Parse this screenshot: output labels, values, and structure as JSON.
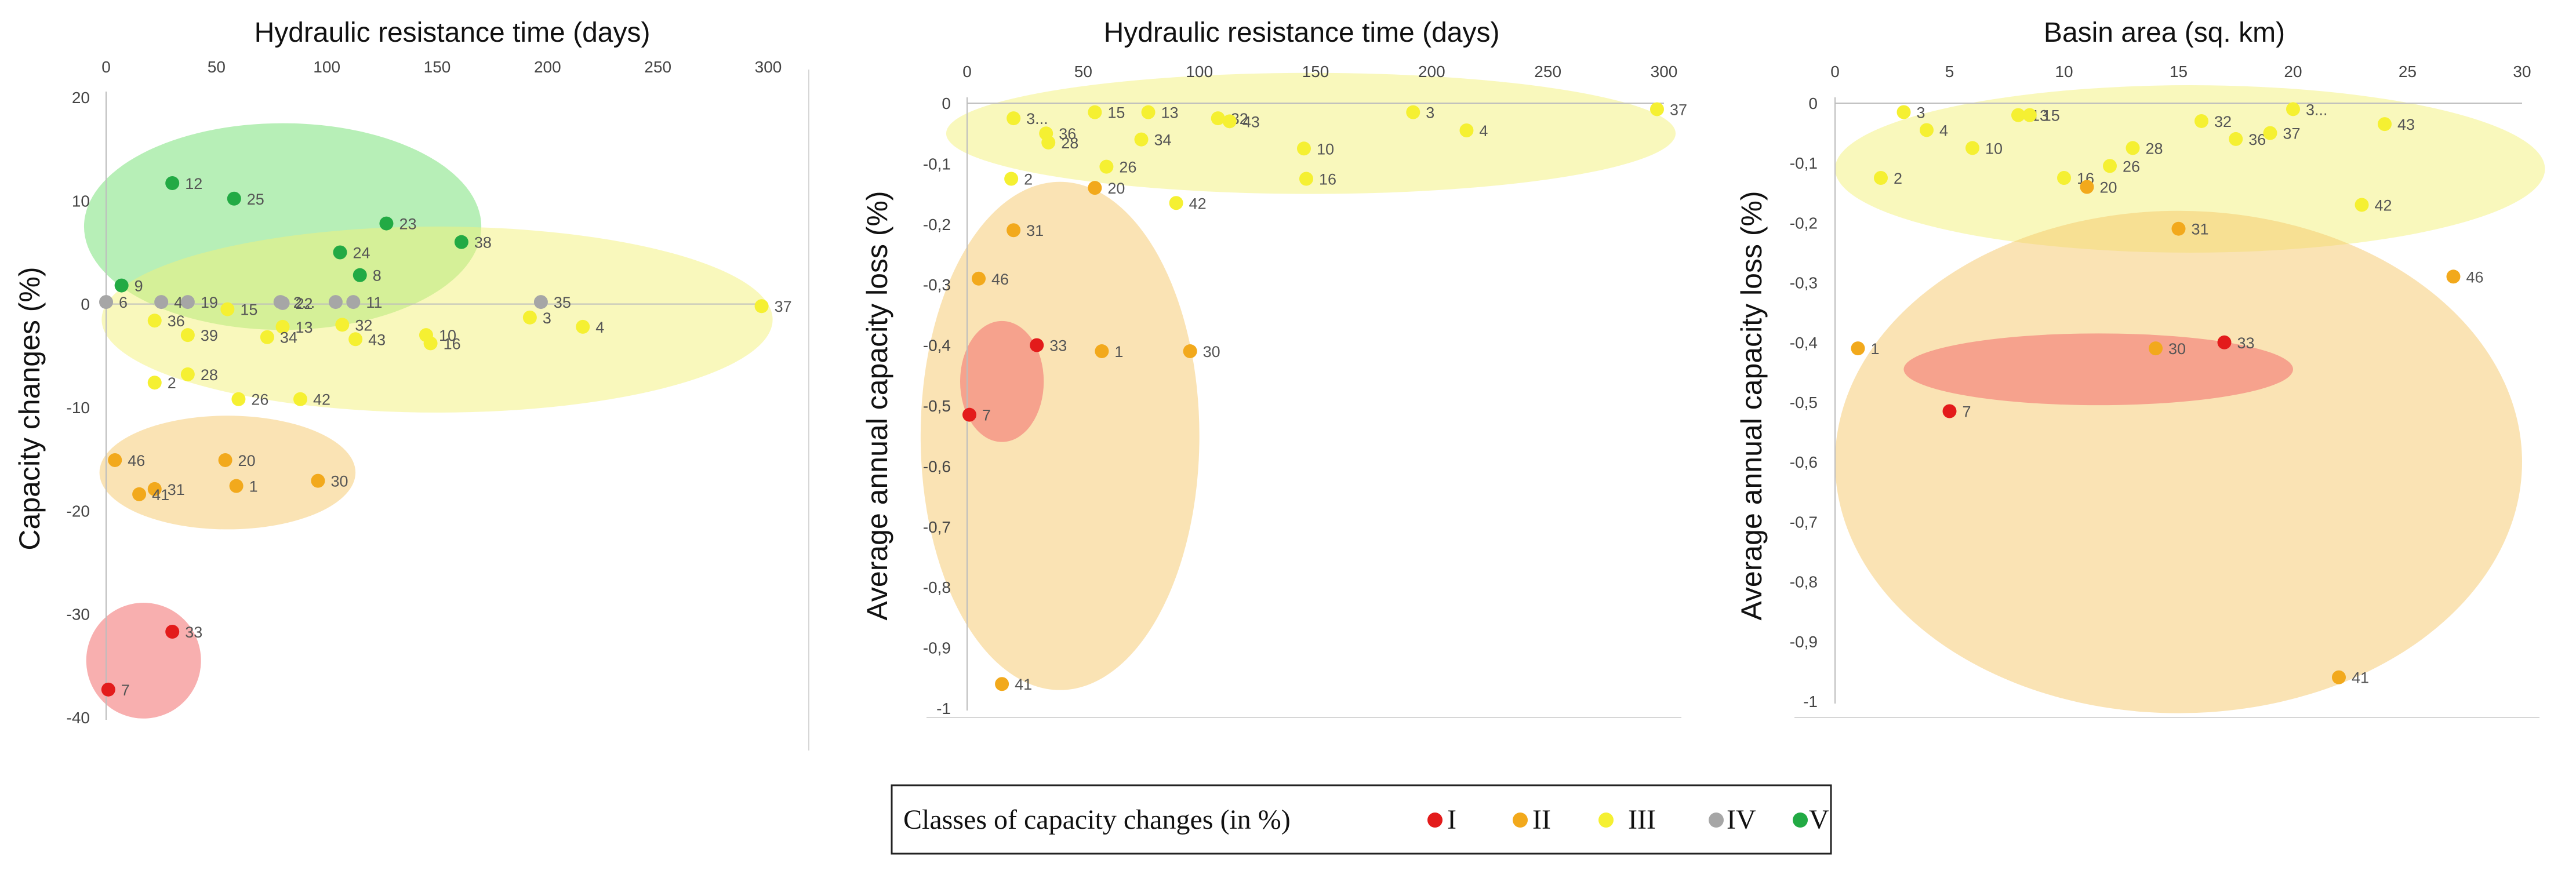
{
  "palette": {
    "I": "#e31b1b",
    "II": "#f2a91c",
    "III": "#f5f032",
    "IV": "#a6a6a6",
    "V": "#22aa44",
    "cluster_red": "#f26d6d",
    "cluster_orange": "#f6c76a",
    "cluster_yellow": "#f4f27a",
    "cluster_green": "#6fe06f"
  },
  "legend": {
    "title": "Classes of capacity changes (in %)",
    "items": [
      {
        "class": "I",
        "label": "I"
      },
      {
        "class": "II",
        "label": "II"
      },
      {
        "class": "III",
        "label": "III"
      },
      {
        "class": "IV",
        "label": "IV"
      },
      {
        "class": "V",
        "label": "V"
      }
    ]
  },
  "chart_data": [
    {
      "type": "scatter",
      "title": "Hydraulic resistance time (days)",
      "xlabel": "",
      "ylabel": "Capacity changes (%)",
      "xlim": [
        0,
        300
      ],
      "ylim": [
        -40,
        20
      ],
      "xticks": [
        "0",
        "50",
        "100",
        "150",
        "200",
        "250",
        "300"
      ],
      "yticks": [
        "20",
        "10",
        "0",
        "-10",
        "-20",
        "-30",
        "-40"
      ],
      "clusters": [
        {
          "class": "V",
          "cx": 80,
          "cy": 7.5,
          "rx": 90,
          "ry": 10
        },
        {
          "class": "III",
          "cx": 150,
          "cy": -1.5,
          "rx": 152,
          "ry": 9
        },
        {
          "class": "II",
          "cx": 55,
          "cy": -16.3,
          "rx": 58,
          "ry": 5.5
        },
        {
          "class": "I",
          "cx": 17,
          "cy": -34.5,
          "rx": 26,
          "ry": 5.6
        }
      ],
      "points": [
        {
          "label": "12",
          "x": 30,
          "y": 11.7,
          "class": "V"
        },
        {
          "label": "25",
          "x": 58,
          "y": 10.2,
          "class": "V"
        },
        {
          "label": "23",
          "x": 127,
          "y": 7.8,
          "class": "V"
        },
        {
          "label": "38",
          "x": 161,
          "y": 6.0,
          "class": "V"
        },
        {
          "label": "24",
          "x": 106,
          "y": 5.0,
          "class": "V"
        },
        {
          "label": "8",
          "x": 115,
          "y": 2.8,
          "class": "V"
        },
        {
          "label": "9",
          "x": 7,
          "y": 1.8,
          "class": "V"
        },
        {
          "label": "6",
          "x": 0,
          "y": 0.2,
          "class": "IV"
        },
        {
          "label": "47",
          "x": 25,
          "y": 0.2,
          "class": "IV"
        },
        {
          "label": "19",
          "x": 37,
          "y": 0.2,
          "class": "IV"
        },
        {
          "label": "2...",
          "x": 79,
          "y": 0.2,
          "class": "IV"
        },
        {
          "label": "22",
          "x": 80,
          "y": 0.1,
          "class": "IV"
        },
        {
          "label": "5",
          "x": 104,
          "y": 0.2,
          "class": "IV"
        },
        {
          "label": "11",
          "x": 112,
          "y": 0.2,
          "class": "IV"
        },
        {
          "label": "35",
          "x": 197,
          "y": 0.2,
          "class": "IV"
        },
        {
          "label": "15",
          "x": 55,
          "y": -0.5,
          "class": "III"
        },
        {
          "label": "37",
          "x": 297,
          "y": -0.2,
          "class": "III"
        },
        {
          "label": "3",
          "x": 192,
          "y": -1.3,
          "class": "III"
        },
        {
          "label": "4",
          "x": 216,
          "y": -2.2,
          "class": "III"
        },
        {
          "label": "13",
          "x": 80,
          "y": -2.2,
          "class": "III"
        },
        {
          "label": "32",
          "x": 107,
          "y": -2.0,
          "class": "III"
        },
        {
          "label": "36",
          "x": 22,
          "y": -1.6,
          "class": "III"
        },
        {
          "label": "39",
          "x": 37,
          "y": -3.0,
          "class": "III"
        },
        {
          "label": "34",
          "x": 73,
          "y": -3.2,
          "class": "III"
        },
        {
          "label": "43",
          "x": 113,
          "y": -3.4,
          "class": "III"
        },
        {
          "label": "10",
          "x": 145,
          "y": -3.0,
          "class": "III"
        },
        {
          "label": "16",
          "x": 147,
          "y": -3.8,
          "class": "III"
        },
        {
          "label": "28",
          "x": 37,
          "y": -6.8,
          "class": "III"
        },
        {
          "label": "2",
          "x": 22,
          "y": -7.6,
          "class": "III"
        },
        {
          "label": "26",
          "x": 60,
          "y": -9.2,
          "class": "III"
        },
        {
          "label": "42",
          "x": 88,
          "y": -9.2,
          "class": "III"
        },
        {
          "label": "46",
          "x": 4,
          "y": -15.1,
          "class": "II"
        },
        {
          "label": "20",
          "x": 54,
          "y": -15.1,
          "class": "II"
        },
        {
          "label": "31",
          "x": 22,
          "y": -17.9,
          "class": "II"
        },
        {
          "label": "41",
          "x": 15,
          "y": -18.4,
          "class": "II"
        },
        {
          "label": "1",
          "x": 59,
          "y": -17.6,
          "class": "II"
        },
        {
          "label": "30",
          "x": 96,
          "y": -17.1,
          "class": "II"
        },
        {
          "label": "33",
          "x": 30,
          "y": -31.7,
          "class": "I"
        },
        {
          "label": "7",
          "x": 1,
          "y": -37.3,
          "class": "I"
        }
      ]
    },
    {
      "type": "scatter",
      "title": "Hydraulic resistance time (days)",
      "xlabel": "",
      "ylabel": "Average annual capacity loss (%)",
      "xlim": [
        0,
        300
      ],
      "ylim": [
        -1,
        0
      ],
      "xticks": [
        "0",
        "50",
        "100",
        "150",
        "200",
        "250",
        "300"
      ],
      "yticks": [
        "0",
        "-0,1",
        "-0,2",
        "-0,3",
        "-0,4",
        "-0,5",
        "-0,6",
        "-0,7",
        "-0,8",
        "-0,9",
        "-1"
      ],
      "clusters": [
        {
          "class": "III",
          "cx": 148,
          "cy": -0.05,
          "rx": 157,
          "ry": 0.1
        },
        {
          "class": "II",
          "cx": 40,
          "cy": -0.55,
          "rx": 60,
          "ry": 0.42
        },
        {
          "class": "I",
          "cx": 15,
          "cy": -0.46,
          "rx": 18,
          "ry": 0.1
        }
      ],
      "points": [
        {
          "label": "3...",
          "x": 20,
          "y": -0.025,
          "class": "III"
        },
        {
          "label": "15",
          "x": 55,
          "y": -0.015,
          "class": "III"
        },
        {
          "label": "13",
          "x": 78,
          "y": -0.015,
          "class": "III"
        },
        {
          "label": "32",
          "x": 108,
          "y": -0.025,
          "class": "III"
        },
        {
          "label": "43",
          "x": 113,
          "y": -0.03,
          "class": "III"
        },
        {
          "label": "3",
          "x": 192,
          "y": -0.015,
          "class": "III"
        },
        {
          "label": "4",
          "x": 215,
          "y": -0.045,
          "class": "III"
        },
        {
          "label": "37",
          "x": 297,
          "y": -0.01,
          "class": "III"
        },
        {
          "label": "36",
          "x": 34,
          "y": -0.05,
          "class": "III"
        },
        {
          "label": "28",
          "x": 35,
          "y": -0.065,
          "class": "III"
        },
        {
          "label": "34",
          "x": 75,
          "y": -0.06,
          "class": "III"
        },
        {
          "label": "10",
          "x": 145,
          "y": -0.075,
          "class": "III"
        },
        {
          "label": "26",
          "x": 60,
          "y": -0.105,
          "class": "III"
        },
        {
          "label": "2",
          "x": 19,
          "y": -0.125,
          "class": "III"
        },
        {
          "label": "16",
          "x": 146,
          "y": -0.125,
          "class": "III"
        },
        {
          "label": "42",
          "x": 90,
          "y": -0.165,
          "class": "III"
        },
        {
          "label": "20",
          "x": 55,
          "y": -0.14,
          "class": "II"
        },
        {
          "label": "31",
          "x": 20,
          "y": -0.21,
          "class": "II"
        },
        {
          "label": "46",
          "x": 5,
          "y": -0.29,
          "class": "II"
        },
        {
          "label": "1",
          "x": 58,
          "y": -0.41,
          "class": "II"
        },
        {
          "label": "30",
          "x": 96,
          "y": -0.41,
          "class": "II"
        },
        {
          "label": "41",
          "x": 15,
          "y": -0.96,
          "class": "II"
        },
        {
          "label": "33",
          "x": 30,
          "y": -0.4,
          "class": "I"
        },
        {
          "label": "7",
          "x": 1,
          "y": -0.515,
          "class": "I"
        }
      ]
    },
    {
      "type": "scatter",
      "title": "Basin area (sq. km)",
      "xlabel": "",
      "ylabel": "Average annual capacity loss (%)",
      "xlim": [
        0,
        30
      ],
      "ylim": [
        -1,
        0
      ],
      "xticks": [
        "0",
        "5",
        "10",
        "15",
        "20",
        "25",
        "30"
      ],
      "yticks": [
        "0",
        "-0,1",
        "-0,2",
        "-0,3",
        "-0,4",
        "-0,5",
        "-0,6",
        "-0,7",
        "-0,8",
        "-0,9",
        "-1"
      ],
      "clusters": [
        {
          "class": "III",
          "cx": 15.5,
          "cy": -0.11,
          "rx": 15.5,
          "ry": 0.14
        },
        {
          "class": "II",
          "cx": 15,
          "cy": -0.6,
          "rx": 15,
          "ry": 0.42
        },
        {
          "class": "I",
          "cx": 11.5,
          "cy": -0.445,
          "rx": 8.5,
          "ry": 0.06
        }
      ],
      "points": [
        {
          "label": "3",
          "x": 3,
          "y": -0.015,
          "class": "III"
        },
        {
          "label": "13",
          "x": 8,
          "y": -0.02,
          "class": "III"
        },
        {
          "label": "15",
          "x": 8.5,
          "y": -0.02,
          "class": "III"
        },
        {
          "label": "3...",
          "x": 20,
          "y": -0.01,
          "class": "III"
        },
        {
          "label": "4",
          "x": 4,
          "y": -0.045,
          "class": "III"
        },
        {
          "label": "10",
          "x": 6,
          "y": -0.075,
          "class": "III"
        },
        {
          "label": "32",
          "x": 16,
          "y": -0.03,
          "class": "III"
        },
        {
          "label": "36",
          "x": 17.5,
          "y": -0.06,
          "class": "III"
        },
        {
          "label": "37",
          "x": 19,
          "y": -0.05,
          "class": "III"
        },
        {
          "label": "43",
          "x": 24,
          "y": -0.035,
          "class": "III"
        },
        {
          "label": "28",
          "x": 13,
          "y": -0.075,
          "class": "III"
        },
        {
          "label": "26",
          "x": 12,
          "y": -0.105,
          "class": "III"
        },
        {
          "label": "2",
          "x": 2,
          "y": -0.125,
          "class": "III"
        },
        {
          "label": "16",
          "x": 10,
          "y": -0.125,
          "class": "III"
        },
        {
          "label": "42",
          "x": 23,
          "y": -0.17,
          "class": "III"
        },
        {
          "label": "20",
          "x": 11,
          "y": -0.14,
          "class": "II"
        },
        {
          "label": "31",
          "x": 15,
          "y": -0.21,
          "class": "II"
        },
        {
          "label": "46",
          "x": 27,
          "y": -0.29,
          "class": "II"
        },
        {
          "label": "1",
          "x": 1,
          "y": -0.41,
          "class": "II"
        },
        {
          "label": "30",
          "x": 14,
          "y": -0.41,
          "class": "II"
        },
        {
          "label": "41",
          "x": 22,
          "y": -0.96,
          "class": "II"
        },
        {
          "label": "33",
          "x": 17,
          "y": -0.4,
          "class": "I"
        },
        {
          "label": "7",
          "x": 5,
          "y": -0.515,
          "class": "I"
        }
      ]
    }
  ]
}
